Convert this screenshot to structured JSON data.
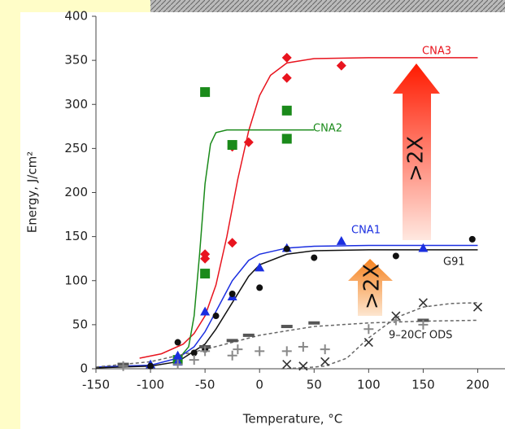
{
  "chart_data": {
    "type": "scatter",
    "x_label": "Temperature, °C",
    "y_label": "Energy, J/cm²",
    "xlim": [
      -150,
      225
    ],
    "ylim": [
      0,
      400
    ],
    "xticks": [
      -150,
      -100,
      -50,
      0,
      50,
      100,
      150,
      200
    ],
    "yticks": [
      0,
      50,
      100,
      150,
      200,
      250,
      300,
      350,
      400
    ],
    "annotations": [
      ">2X",
      ">2X"
    ],
    "series": [
      {
        "name": "CNA3",
        "color": "#e8141e",
        "marker": "diamond",
        "x": [
          -50,
          -50,
          -25,
          -25,
          -10,
          25,
          25,
          75
        ],
        "values": [
          130,
          125,
          252,
          143,
          257,
          353,
          330,
          344
        ],
        "curve_x": [
          -110,
          -90,
          -70,
          -60,
          -50,
          -40,
          -30,
          -20,
          -10,
          0,
          10,
          25,
          50,
          100,
          200
        ],
        "curve_values": [
          12,
          17,
          28,
          40,
          60,
          95,
          150,
          215,
          270,
          310,
          333,
          347,
          352,
          353,
          353
        ],
        "dashed": false
      },
      {
        "name": "CNA2",
        "color": "#1a8a1a",
        "marker": "square",
        "x": [
          -50,
          -50,
          -25,
          25,
          25,
          -75
        ],
        "values": [
          314,
          108,
          254,
          293,
          261,
          10
        ],
        "curve_x": [
          -75,
          -65,
          -60,
          -55,
          -50,
          -45,
          -40,
          -30,
          -20,
          0,
          50
        ],
        "curve_values": [
          10,
          25,
          60,
          130,
          210,
          255,
          268,
          271,
          271,
          271,
          271
        ],
        "dashed": false
      },
      {
        "name": "CNA1",
        "color": "#1a2ee0",
        "marker": "triangle",
        "x": [
          -100,
          -75,
          -75,
          -50,
          -25,
          0,
          25,
          75,
          150
        ],
        "values": [
          5,
          15,
          8,
          65,
          82,
          115,
          137,
          145,
          137
        ],
        "curve_x": [
          -150,
          -100,
          -75,
          -60,
          -50,
          -40,
          -25,
          -10,
          0,
          25,
          50,
          100,
          200
        ],
        "curve_values": [
          2,
          4,
          12,
          25,
          42,
          65,
          100,
          123,
          130,
          137,
          139,
          140,
          140
        ],
        "dashed": false
      },
      {
        "name": "G91",
        "color": "#111111",
        "marker": "circle",
        "x": [
          -100,
          -75,
          -60,
          -50,
          -40,
          -25,
          0,
          25,
          50,
          125,
          195
        ],
        "values": [
          3,
          30,
          18,
          22,
          60,
          85,
          92,
          136,
          126,
          128,
          147
        ],
        "curve_x": [
          -150,
          -100,
          -75,
          -50,
          -40,
          -25,
          -10,
          0,
          25,
          50,
          100,
          200
        ],
        "curve_values": [
          1,
          3,
          8,
          28,
          45,
          75,
          105,
          118,
          130,
          134,
          135,
          135
        ],
        "dashed": false
      },
      {
        "name": "9–20Cr ODS",
        "color": "#555555",
        "marker": "dash",
        "x": [
          -125,
          -50,
          -25,
          -10,
          25,
          50,
          150
        ],
        "values": [
          5,
          25,
          32,
          38,
          48,
          52,
          55
        ],
        "curve_x": [
          -150,
          -100,
          -50,
          0,
          50,
          100,
          150,
          200
        ],
        "curve_values": [
          2,
          8,
          22,
          38,
          48,
          52,
          54,
          55
        ],
        "dashed": true
      },
      {
        "color": "#888888",
        "marker": "plus",
        "x": [
          -125,
          -75,
          -60,
          -50,
          -25,
          -20,
          0,
          25,
          40,
          60,
          100,
          125,
          150
        ],
        "values": [
          3,
          5,
          10,
          20,
          15,
          22,
          20,
          20,
          25,
          22,
          45,
          55,
          50
        ]
      },
      {
        "color": "#333333",
        "marker": "cross",
        "x": [
          25,
          40,
          60,
          100,
          125,
          150,
          200
        ],
        "values": [
          5,
          3,
          8,
          30,
          60,
          75,
          70
        ],
        "curve_x": [
          20,
          40,
          60,
          80,
          100,
          125,
          150,
          175,
          200
        ],
        "curve_values": [
          0,
          1,
          3,
          12,
          35,
          58,
          70,
          74,
          75
        ],
        "dashed": true
      }
    ]
  }
}
